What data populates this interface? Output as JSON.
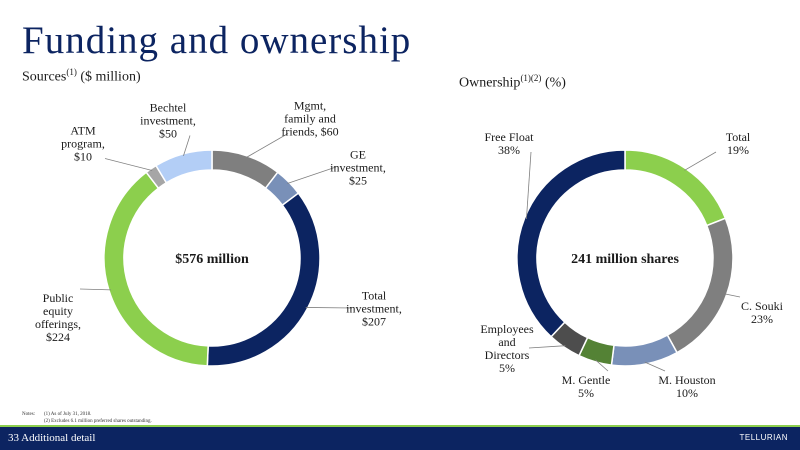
{
  "title": "Funding and ownership",
  "footer": {
    "page_label": "33 Additional detail",
    "logo_text": "TELLURIAN"
  },
  "notes": {
    "label": "Notes:",
    "items": [
      "(1) As of July 31, 2018.",
      "(2) Excludes 6.1 million preferred shares outstanding."
    ]
  },
  "chart_data": [
    {
      "type": "pie",
      "subtitle": {
        "text": "Sources",
        "sup": "(1)",
        "rest": " ($ million)"
      },
      "center_label": "$576 million",
      "slices": [
        {
          "label_lines": [
            "Mgmt,",
            "family and",
            "friends, $60"
          ],
          "value": 60,
          "color": "#7f7f7f"
        },
        {
          "label_lines": [
            "GE",
            "investment,",
            "$25"
          ],
          "value": 25,
          "color": "#7990b8"
        },
        {
          "label_lines": [
            "Total",
            "investment,",
            "$207"
          ],
          "value": 207,
          "color": "#0c2461"
        },
        {
          "label_lines": [
            "Public",
            "equity",
            "offerings,",
            "$224"
          ],
          "value": 224,
          "color": "#8ccf4d"
        },
        {
          "label_lines": [
            "ATM",
            "program,",
            "$10"
          ],
          "value": 10,
          "color": "#a6a6a6"
        },
        {
          "label_lines": [
            "Bechtel",
            "investment,",
            "$50"
          ],
          "value": 50,
          "color": "#b3cef6"
        }
      ]
    },
    {
      "type": "pie",
      "subtitle": {
        "text": "Ownership",
        "sup": "(1)(2)",
        "rest": " (%)"
      },
      "center_label": "241 million shares",
      "slices": [
        {
          "label_lines": [
            "Total",
            "19%"
          ],
          "value": 19,
          "color": "#8ccf4d"
        },
        {
          "label_lines": [
            "C. Souki",
            "23%"
          ],
          "value": 23,
          "color": "#7f7f7f"
        },
        {
          "label_lines": [
            "M. Houston",
            "10%"
          ],
          "value": 10,
          "color": "#7990b8"
        },
        {
          "label_lines": [
            "M. Gentle",
            "5%"
          ],
          "value": 5,
          "color": "#548235"
        },
        {
          "label_lines": [
            "Employees",
            "and",
            "Directors",
            "5%"
          ],
          "value": 5,
          "color": "#4d4d4d"
        },
        {
          "label_lines": [
            "Free Float",
            "38%"
          ],
          "value": 38,
          "color": "#0c2461"
        }
      ]
    }
  ]
}
